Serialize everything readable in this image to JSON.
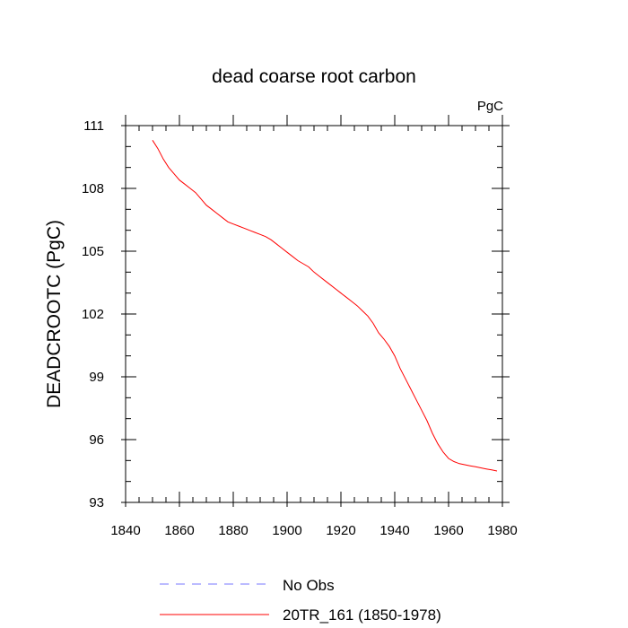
{
  "chart_data": {
    "type": "line",
    "title": "dead coarse root carbon",
    "units_label": "PgC",
    "ylabel": "DEADCROOTC  (PgC)",
    "xlabel": "",
    "xlim": [
      1840,
      1980
    ],
    "ylim": [
      93,
      111
    ],
    "xticks": [
      1840,
      1860,
      1880,
      1900,
      1920,
      1940,
      1960,
      1980
    ],
    "yticks": [
      93,
      96,
      99,
      102,
      105,
      108,
      111
    ],
    "xtick_labels": [
      "1840",
      "1860",
      "1880",
      "1900",
      "1920",
      "1940",
      "1960",
      "1980"
    ],
    "ytick_labels": [
      "93",
      "96",
      "99",
      "102",
      "105",
      "108",
      "111"
    ],
    "grid": false,
    "legend_position": "bottom",
    "series": [
      {
        "name": "20TR_161 (1850-1978)",
        "color": "#ff0000",
        "style": "solid",
        "x": [
          1850,
          1852,
          1854,
          1856,
          1858,
          1860,
          1862,
          1864,
          1866,
          1868,
          1870,
          1872,
          1874,
          1876,
          1878,
          1880,
          1882,
          1884,
          1886,
          1888,
          1890,
          1892,
          1894,
          1896,
          1898,
          1900,
          1902,
          1904,
          1906,
          1908,
          1910,
          1912,
          1914,
          1916,
          1918,
          1920,
          1922,
          1924,
          1926,
          1928,
          1930,
          1932,
          1934,
          1936,
          1938,
          1940,
          1942,
          1944,
          1946,
          1948,
          1950,
          1952,
          1954,
          1956,
          1958,
          1960,
          1962,
          1964,
          1966,
          1968,
          1970,
          1972,
          1974,
          1976,
          1978
        ],
        "y": [
          110.3,
          109.9,
          109.4,
          109.0,
          108.7,
          108.4,
          108.2,
          108.0,
          107.8,
          107.5,
          107.2,
          107.0,
          106.8,
          106.6,
          106.4,
          106.3,
          106.2,
          106.1,
          106.0,
          105.9,
          105.8,
          105.7,
          105.55,
          105.35,
          105.15,
          104.95,
          104.75,
          104.55,
          104.4,
          104.25,
          104.0,
          103.8,
          103.6,
          103.4,
          103.2,
          103.0,
          102.8,
          102.6,
          102.4,
          102.15,
          101.9,
          101.55,
          101.1,
          100.8,
          100.45,
          100.0,
          99.4,
          98.9,
          98.4,
          97.9,
          97.4,
          96.9,
          96.3,
          95.8,
          95.4,
          95.1,
          94.95,
          94.85,
          94.8,
          94.75,
          94.7,
          94.65,
          94.6,
          94.55,
          94.5
        ]
      }
    ],
    "legend": [
      {
        "label": "No Obs",
        "color": "#7777ff",
        "style": "dashed"
      },
      {
        "label": "20TR_161 (1850-1978)",
        "color": "#ff0000",
        "style": "solid"
      }
    ]
  }
}
